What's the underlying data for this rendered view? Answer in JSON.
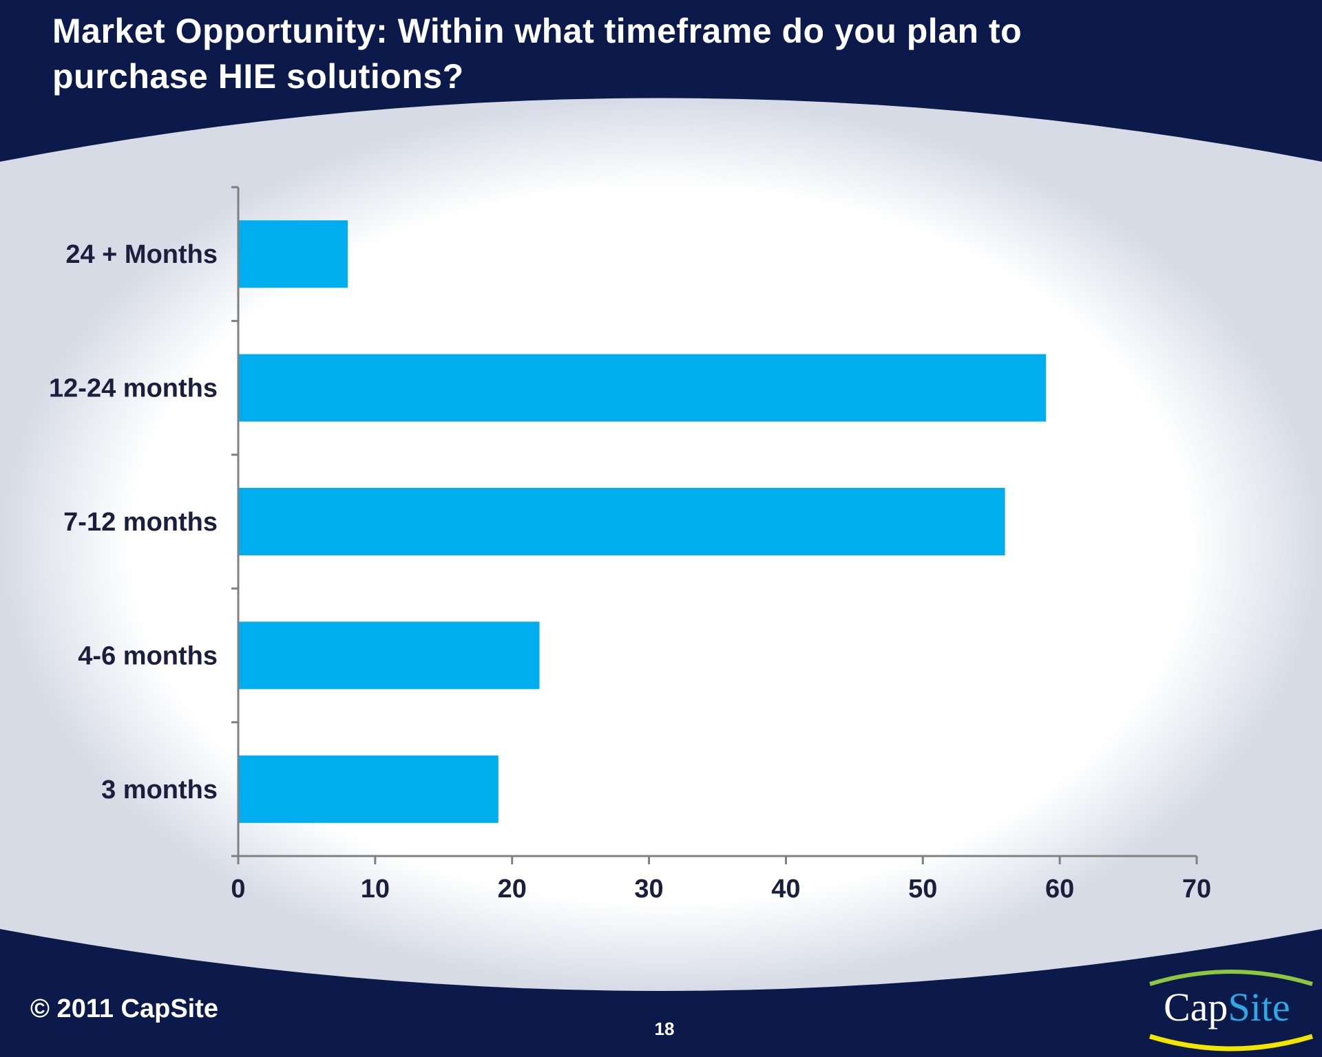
{
  "slide": {
    "title": "Market Opportunity: Within what timeframe do you plan to purchase HIE solutions?",
    "copyright": "© 2011 CapSite",
    "page_number": "18",
    "logo": {
      "part1": "Cap",
      "part2": "Site"
    }
  },
  "colors": {
    "background": "#0b1a4a",
    "bar": "#00aeef",
    "axis": "#808080",
    "label": "#1a1f3d",
    "logo_arc_green": "#8dc63f",
    "logo_arc_yellow": "#f2e600"
  },
  "chart_data": {
    "type": "bar",
    "orientation": "horizontal",
    "categories": [
      "24 + Months",
      "12-24 months",
      "7-12 months",
      "4-6 months",
      "3 months"
    ],
    "values": [
      8,
      59,
      56,
      22,
      19
    ],
    "xlim": [
      0,
      70
    ],
    "xticks": [
      0,
      10,
      20,
      30,
      40,
      50,
      60,
      70
    ],
    "grid": false,
    "legend": "none",
    "title": "",
    "xlabel": "",
    "ylabel": ""
  }
}
